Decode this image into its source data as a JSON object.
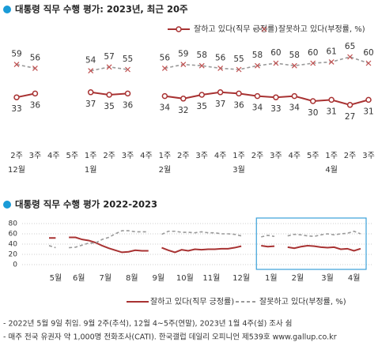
{
  "chart_data": [
    {
      "type": "line",
      "title": "대통령 직무 수행 평가: 2023년, 최근 20주",
      "categories": [
        "2주",
        "3주",
        "4주",
        "5주",
        "1주",
        "2주",
        "3주",
        "4주",
        "1주",
        "2주",
        "3주",
        "4주",
        "1주",
        "2주",
        "3주",
        "4주",
        "5주",
        "1주",
        "2주",
        "3주"
      ],
      "month_labels": [
        "12월",
        null,
        null,
        null,
        "1월",
        null,
        null,
        null,
        "2월",
        null,
        null,
        null,
        "3월",
        null,
        null,
        null,
        null,
        "4월",
        null,
        null
      ],
      "series": [
        {
          "name": "잘하고 있다(직무 긍정률)",
          "color": "#a83232",
          "values": [
            33,
            36,
            null,
            null,
            37,
            35,
            36,
            null,
            34,
            32,
            35,
            37,
            36,
            34,
            33,
            34,
            30,
            31,
            27,
            31
          ]
        },
        {
          "name": "잘못하고 있다(부정률, %)",
          "color": "#9a9a9a",
          "values": [
            59,
            56,
            null,
            null,
            54,
            57,
            55,
            null,
            56,
            59,
            58,
            56,
            55,
            58,
            60,
            58,
            60,
            61,
            65,
            60
          ]
        }
      ],
      "ylim": [
        25,
        70
      ]
    },
    {
      "type": "line",
      "title": "대통령 직무 수행 평가 2022-2023",
      "categories": [
        "5월",
        null,
        null,
        "6월",
        null,
        null,
        null,
        "7월",
        null,
        null,
        null,
        "8월",
        null,
        null,
        null,
        "9월",
        null,
        null,
        null,
        "10월",
        null,
        null,
        null,
        "11월",
        null,
        null,
        null,
        "12월",
        null,
        null,
        null,
        null,
        "1월",
        null,
        null,
        null,
        "2월",
        null,
        null,
        null,
        "3월",
        null,
        null,
        null,
        null,
        "4월",
        null,
        null
      ],
      "series": [
        {
          "name": "잘하고 있다(직무 긍정률)",
          "color": "#a83232",
          "values": [
            52,
            52,
            null,
            53,
            53,
            49,
            47,
            43,
            37,
            32,
            28,
            24,
            25,
            28,
            27,
            27,
            null,
            33,
            28,
            24,
            29,
            27,
            30,
            29,
            30,
            30,
            31,
            31,
            33,
            36,
            null,
            null,
            37,
            35,
            36,
            null,
            34,
            32,
            35,
            37,
            36,
            34,
            33,
            34,
            30,
            31,
            27,
            31
          ]
        },
        {
          "name": "잘못하고 있다(부정률, %)",
          "color": "#9a9a9a",
          "values": [
            37,
            33,
            null,
            33,
            34,
            38,
            42,
            42,
            49,
            53,
            60,
            66,
            66,
            64,
            64,
            64,
            null,
            59,
            65,
            65,
            63,
            63,
            62,
            64,
            62,
            62,
            60,
            60,
            59,
            56,
            null,
            null,
            54,
            57,
            55,
            null,
            56,
            59,
            58,
            56,
            55,
            58,
            60,
            58,
            60,
            61,
            65,
            60
          ]
        }
      ],
      "ylim": [
        0,
        80
      ],
      "yticks": [
        0,
        20,
        40,
        60,
        80
      ],
      "grid": true
    }
  ],
  "notes": [
    "- 2022년 5월 9일 취임. 9월 2주(추석), 12월 4~5주(연말), 2023년 1월 4주(설) 조사 쉼",
    "- 매주 전국 유권자 약 1,000명 전화조사(CATI). 한국갤럽 데일리 오피니언 제539호 www.gallup.co.kr"
  ]
}
